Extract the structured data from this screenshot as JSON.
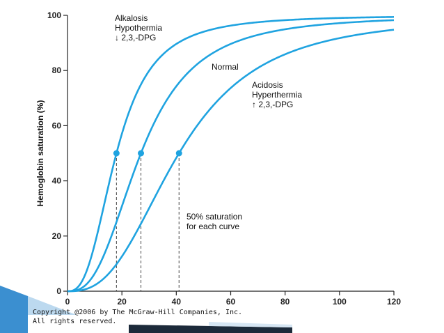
{
  "chart_data": {
    "type": "line",
    "title": "",
    "xlabel": "",
    "ylabel": "Hemoglobin saturation (%)",
    "xlim": [
      0,
      120
    ],
    "ylim": [
      0,
      100
    ],
    "xticks": [
      0,
      20,
      40,
      60,
      80,
      100,
      120
    ],
    "yticks": [
      0,
      20,
      40,
      60,
      80,
      100
    ],
    "grid": false,
    "series": [
      {
        "name": "Alkalosis / Hypothermia / ↓ 2,3,-DPG",
        "p50": 18,
        "hill_n": 2.7,
        "color": "#1fa3e0",
        "label_lines": [
          "Alkalosis",
          "Hypothermia",
          "↓ 2,3,-DPG"
        ]
      },
      {
        "name": "Normal",
        "p50": 27,
        "hill_n": 2.7,
        "color": "#1fa3e0",
        "label_lines": [
          "Normal"
        ]
      },
      {
        "name": "Acidosis / Hyperthermia / ↑ 2,3,-DPG",
        "p50": 41,
        "hill_n": 2.7,
        "color": "#1fa3e0",
        "label_lines": [
          "Acidosis",
          "Hyperthermia",
          "↑ 2,3,-DPG"
        ]
      }
    ],
    "markers": [
      {
        "x": 18,
        "y": 50
      },
      {
        "x": 27,
        "y": 50
      },
      {
        "x": 41,
        "y": 50
      }
    ],
    "annotation": [
      "50% saturation",
      "for each curve"
    ]
  },
  "copyright": {
    "line1": "Copyright @2006 by The McGraw-Hill Companies, Inc.",
    "line2": "All rights reserved."
  },
  "colors": {
    "curve": "#1fa3e0",
    "marker": "#1fa3e0",
    "axis": "#222222",
    "decor_dark": "#1c2a3a",
    "decor_blue": "#3b8fd0"
  }
}
